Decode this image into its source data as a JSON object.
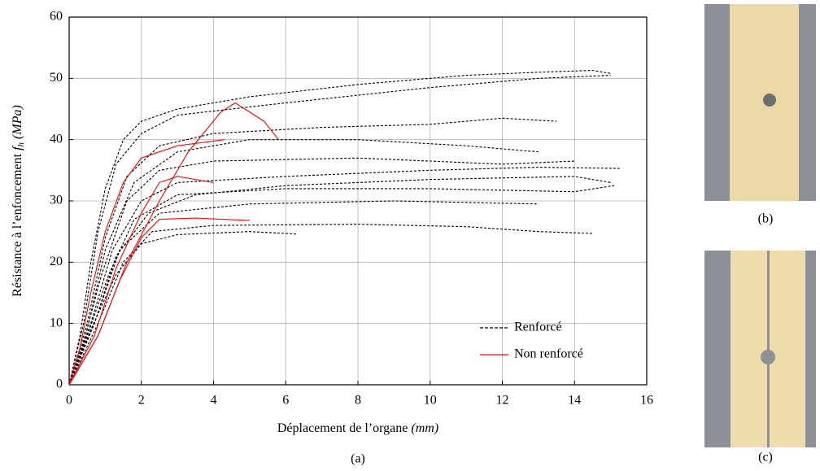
{
  "chart_data": {
    "type": "line",
    "xlabel": "Déplacement de l’organe",
    "xlabel_unit": "(mm)",
    "ylabel": "Résistance à l’enfoncement",
    "ylabel_symbol": "f",
    "ylabel_sub": "h",
    "ylabel_unit": "(MPa)",
    "xlim": [
      0,
      16
    ],
    "xticks": [
      0,
      2,
      4,
      6,
      8,
      10,
      12,
      14,
      16
    ],
    "ylim": [
      0,
      60
    ],
    "yticks": [
      0,
      10,
      20,
      30,
      40,
      50,
      60
    ],
    "grid": true,
    "legend": "lower right",
    "series": [
      {
        "name": "Renforcé",
        "color": "#000000",
        "dashed": true,
        "lines": [
          {
            "x": [
              0,
              0.3,
              0.6,
              1,
              1.5,
              2,
              3,
              5,
              8,
              11,
              13,
              14.5,
              15
            ],
            "y": [
              0,
              8,
              20,
              32,
              40,
              43,
              45,
              47,
              49,
              50.5,
              51,
              51.3,
              50.8
            ]
          },
          {
            "x": [
              0,
              0.4,
              0.8,
              1.3,
              2,
              3,
              6,
              10,
              13,
              15
            ],
            "y": [
              0,
              10,
              25,
              36,
              41,
              44,
              46,
              48.5,
              50,
              50.5
            ]
          },
          {
            "x": [
              0,
              0.5,
              1,
              1.6,
              2.5,
              4,
              7,
              10,
              12,
              13.5
            ],
            "y": [
              0,
              10,
              24,
              34,
              39,
              41,
              42,
              42.5,
              43.5,
              43
            ]
          },
          {
            "x": [
              0,
              0.5,
              1,
              1.8,
              3,
              5,
              8,
              11,
              13
            ],
            "y": [
              0,
              9,
              22,
              33,
              38,
              40,
              40,
              39,
              38
            ]
          },
          {
            "x": [
              0,
              0.6,
              1.2,
              2,
              3,
              6,
              10,
              13,
              15.3
            ],
            "y": [
              0,
              10,
              22,
              30,
              33,
              34,
              35,
              35.5,
              35.3
            ]
          },
          {
            "x": [
              0,
              0.7,
              1.3,
              2.2,
              3.5,
              6,
              10,
              14,
              15
            ],
            "y": [
              0,
              10,
              21,
              28,
              31,
              32.5,
              33.5,
              34,
              33
            ]
          },
          {
            "x": [
              0,
              0.8,
              1.5,
              2.3,
              4,
              8,
              11,
              13,
              14.5
            ],
            "y": [
              0,
              10,
              20,
              25,
              26,
              26.2,
              25.8,
              25,
              24.7
            ]
          },
          {
            "x": [
              0,
              0.6,
              1.3,
              2,
              3,
              5,
              6.3
            ],
            "y": [
              0,
              9,
              18,
              23,
              24.5,
              25,
              24.6
            ]
          },
          {
            "x": [
              0,
              0.7,
              1.4,
              2.5,
              5,
              9,
              13
            ],
            "y": [
              0,
              10,
              22,
              28,
              29.5,
              30,
              29.5
            ]
          },
          {
            "x": [
              0,
              0.5,
              1.1,
              1.8,
              3,
              6,
              10,
              14,
              15.1
            ],
            "y": [
              0,
              8,
              18,
              27,
              31,
              32,
              32,
              31.5,
              32.5
            ]
          },
          {
            "x": [
              0,
              0.4,
              0.9,
              1.6,
              2.5,
              4,
              8,
              12,
              14
            ],
            "y": [
              0,
              7,
              18,
              30,
              35,
              36.5,
              37,
              36,
              36.5
            ]
          }
        ]
      },
      {
        "name": "Non renforcé",
        "color": "#ff0000",
        "dashed": false,
        "lines": [
          {
            "x": [
              0,
              0.3,
              0.6,
              1,
              1.5,
              2,
              3,
              4.3
            ],
            "y": [
              0,
              6,
              15,
              25,
              33,
              37,
              39,
              40
            ]
          },
          {
            "x": [
              0,
              0.8,
              1.2,
              1.6,
              2.5,
              3.3,
              4.2,
              4.6,
              5,
              5.4,
              5.8
            ],
            "y": [
              0,
              8,
              14,
              20,
              30,
              38,
              44.5,
              46,
              44.5,
              43,
              40
            ]
          },
          {
            "x": [
              0,
              0.7,
              1.3,
              2,
              2.5,
              3,
              4
            ],
            "y": [
              0,
              8,
              19,
              28,
              33,
              34,
              33
            ]
          },
          {
            "x": [
              0,
              0.8,
              1.4,
              2,
              2.5,
              3.5,
              5
            ],
            "y": [
              0,
              8,
              17,
              24,
              27,
              27.2,
              26.8
            ]
          }
        ]
      }
    ]
  },
  "figure": {
    "captions": [
      "(a)",
      "(b)",
      "(c)"
    ]
  }
}
